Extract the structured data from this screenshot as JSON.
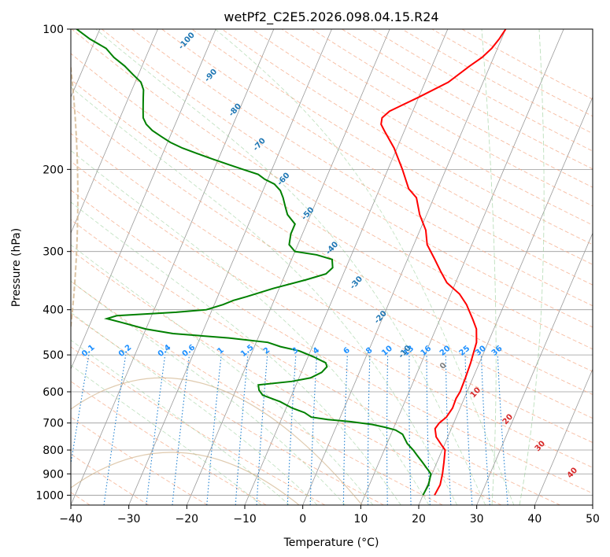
{
  "chart_data": {
    "type": "line",
    "title": "wetPf2_C2E5.2026.098.04.15.R24",
    "xlabel": "Temperature (°C)",
    "ylabel": "Pressure (hPa)",
    "xlim": [
      -40,
      50
    ],
    "ylim": [
      1050,
      100
    ],
    "x_ticks": [
      -40,
      -30,
      -20,
      -10,
      0,
      10,
      20,
      30,
      40,
      50
    ],
    "y_ticks": [
      100,
      200,
      300,
      400,
      500,
      600,
      700,
      800,
      900,
      1000
    ],
    "skew": 35,
    "series": [
      {
        "name": "Temperature",
        "color": "#ff0000",
        "points": [
          [
            22,
            1000
          ],
          [
            22.2,
            950
          ],
          [
            21.8,
            900
          ],
          [
            21.2,
            850
          ],
          [
            20.5,
            800
          ],
          [
            19.5,
            780
          ],
          [
            18,
            750
          ],
          [
            17.2,
            720
          ],
          [
            17.5,
            700
          ],
          [
            18.3,
            680
          ],
          [
            18.7,
            650
          ],
          [
            18.6,
            620
          ],
          [
            18.8,
            600
          ],
          [
            18.7,
            560
          ],
          [
            18.5,
            520
          ],
          [
            18.3,
            500
          ],
          [
            18.0,
            470
          ],
          [
            17,
            440
          ],
          [
            15.7,
            420
          ],
          [
            13.5,
            390
          ],
          [
            11.5,
            370
          ],
          [
            8.5,
            350
          ],
          [
            6.5,
            330
          ],
          [
            4.5,
            310
          ],
          [
            2.3,
            290
          ],
          [
            1,
            270
          ],
          [
            -1.2,
            250
          ],
          [
            -3,
            230
          ],
          [
            -5,
            220
          ],
          [
            -7.5,
            200
          ],
          [
            -10.5,
            180
          ],
          [
            -13.5,
            165
          ],
          [
            -14.5,
            160
          ],
          [
            -14.8,
            155
          ],
          [
            -14,
            150
          ],
          [
            -10,
            140
          ],
          [
            -6,
            130
          ],
          [
            -3.5,
            120
          ],
          [
            -2,
            115
          ],
          [
            -1,
            110
          ],
          [
            -0.4,
            105
          ],
          [
            0,
            100
          ]
        ]
      },
      {
        "name": "Dewpoint",
        "color": "#008000",
        "points": [
          [
            20,
            1000
          ],
          [
            20.2,
            950
          ],
          [
            19.8,
            900
          ],
          [
            17.5,
            850
          ],
          [
            16,
            820
          ],
          [
            15,
            800
          ],
          [
            13.5,
            775
          ],
          [
            12,
            740
          ],
          [
            10.5,
            725
          ],
          [
            8.5,
            715
          ],
          [
            6,
            705
          ],
          [
            2,
            695
          ],
          [
            -2,
            688
          ],
          [
            -5,
            680
          ],
          [
            -6.5,
            665
          ],
          [
            -9,
            650
          ],
          [
            -11.5,
            630
          ],
          [
            -15,
            610
          ],
          [
            -16,
            595
          ],
          [
            -16.5,
            580
          ],
          [
            -11,
            570
          ],
          [
            -8,
            560
          ],
          [
            -6.5,
            545
          ],
          [
            -6,
            530
          ],
          [
            -6.5,
            520
          ],
          [
            -9,
            505
          ],
          [
            -12,
            490
          ],
          [
            -15.5,
            480
          ],
          [
            -18,
            470
          ],
          [
            -25,
            460
          ],
          [
            -35,
            450
          ],
          [
            -40,
            440
          ],
          [
            -45,
            425
          ],
          [
            -47.5,
            418
          ],
          [
            -46,
            412
          ],
          [
            -36,
            405
          ],
          [
            -31,
            400
          ],
          [
            -28.5,
            390
          ],
          [
            -27,
            382
          ],
          [
            -25,
            375
          ],
          [
            -21,
            360
          ],
          [
            -16,
            345
          ],
          [
            -13,
            335
          ],
          [
            -12.3,
            325
          ],
          [
            -13,
            312
          ],
          [
            -16,
            305
          ],
          [
            -20,
            300
          ],
          [
            -21.5,
            290
          ],
          [
            -22,
            275
          ],
          [
            -22,
            262
          ],
          [
            -24,
            250
          ],
          [
            -25,
            240
          ],
          [
            -26,
            230
          ],
          [
            -27,
            222
          ],
          [
            -28.5,
            215
          ],
          [
            -30.5,
            210
          ],
          [
            -32,
            205
          ],
          [
            -35,
            200
          ],
          [
            -38,
            195
          ],
          [
            -41,
            190
          ],
          [
            -44,
            185
          ],
          [
            -47,
            180
          ],
          [
            -49.5,
            175
          ],
          [
            -51.5,
            170
          ],
          [
            -53.5,
            165
          ],
          [
            -55,
            160
          ],
          [
            -56,
            155
          ],
          [
            -56.5,
            150
          ],
          [
            -57,
            145
          ],
          [
            -57.5,
            140
          ],
          [
            -58,
            135
          ],
          [
            -59,
            130
          ],
          [
            -61,
            125
          ],
          [
            -63,
            120
          ],
          [
            -65.5,
            115
          ],
          [
            -67.5,
            110
          ],
          [
            -71,
            105
          ],
          [
            -74,
            100
          ]
        ]
      }
    ],
    "dry_adiabat_labels": [
      "-100",
      "-90",
      "-80",
      "-70",
      "-60",
      "-50",
      "-40",
      "-30",
      "-20",
      "-10",
      "0",
      "10",
      "20",
      "30",
      "40"
    ],
    "mixing_ratio_labels": [
      "0.1",
      "0.2",
      "0.4",
      "0.6",
      "1",
      "1.5",
      "2",
      "3",
      "4",
      "6",
      "8",
      "10",
      "13",
      "16",
      "20",
      "25",
      "30",
      "36"
    ]
  }
}
